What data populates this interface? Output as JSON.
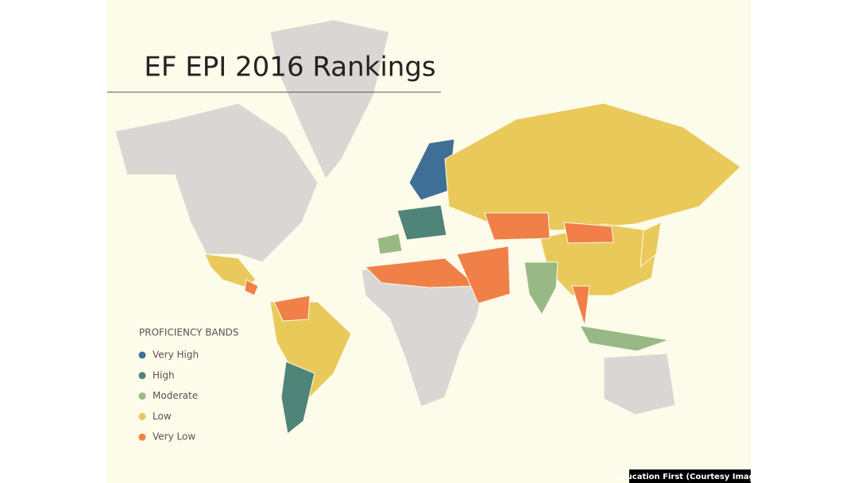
{
  "header": {
    "title": "EF EPI 2016 Rankings"
  },
  "legend": {
    "title": "PROFICIENCY BANDS",
    "items": [
      {
        "label": "Very High",
        "color": "#3f6e96"
      },
      {
        "label": "High",
        "color": "#4f8478"
      },
      {
        "label": "Moderate",
        "color": "#98b985"
      },
      {
        "label": "Low",
        "color": "#e8c95a"
      },
      {
        "label": "Very Low",
        "color": "#f08048"
      }
    ]
  },
  "credit": "Education First (Courtesy Image)"
}
